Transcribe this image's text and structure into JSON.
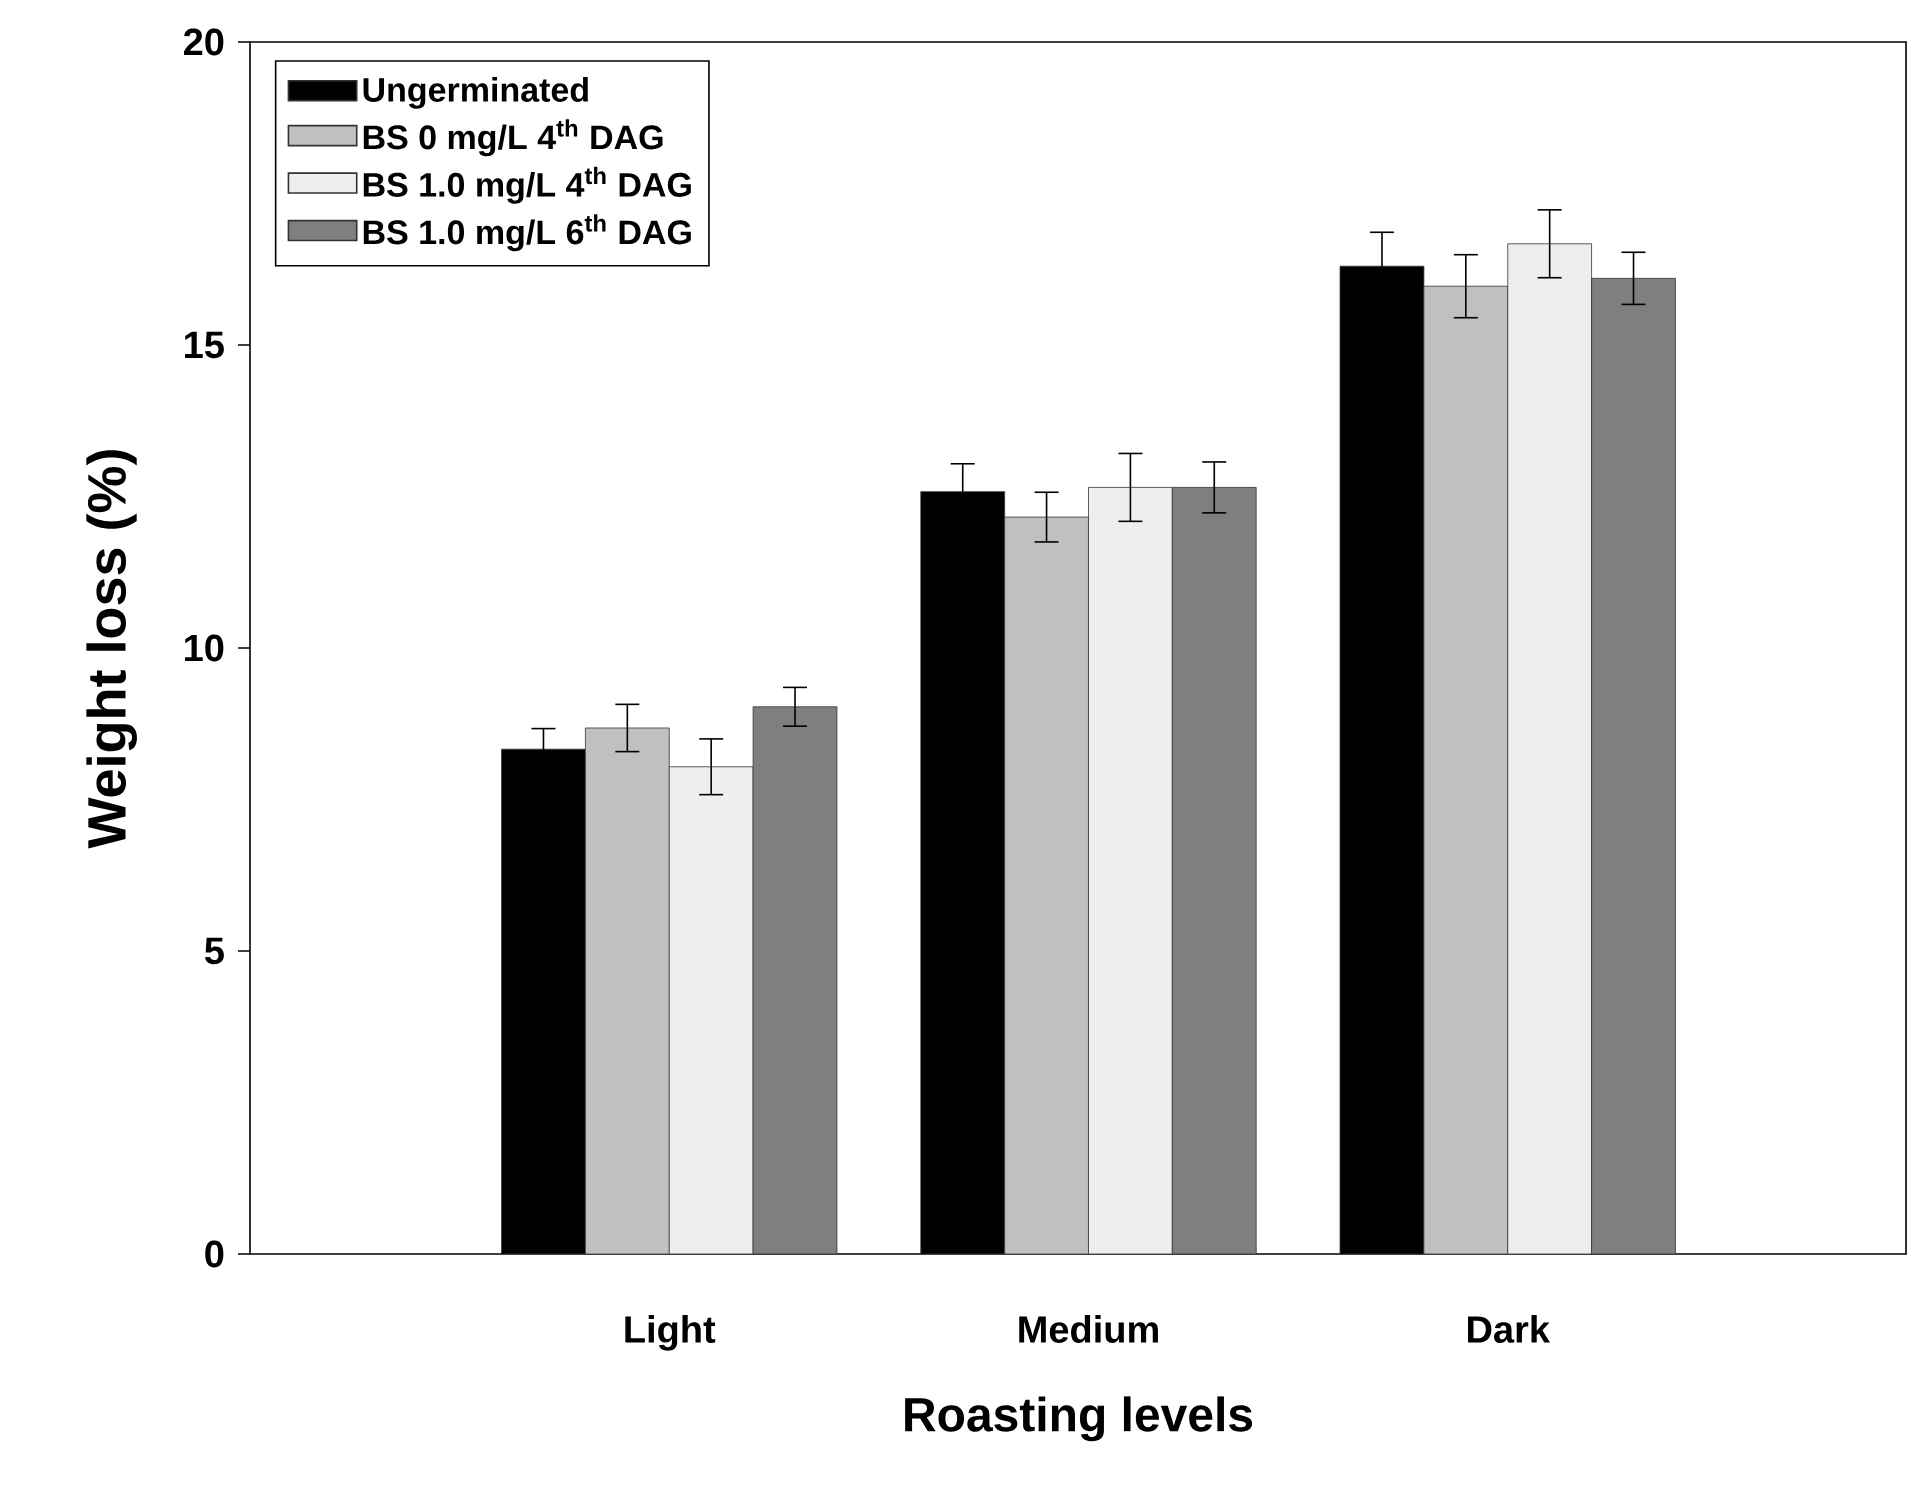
{
  "chart_data": {
    "type": "bar",
    "xlabel": "Roasting levels",
    "ylabel": "Weight loss (%)",
    "categories": [
      "Light",
      "Medium",
      "Dark"
    ],
    "series": [
      {
        "name": "Ungerminated",
        "color": "#000000",
        "values": [
          8.33,
          12.58,
          16.3
        ],
        "errors": [
          0.34,
          0.46,
          0.56
        ]
      },
      {
        "name": "BS    0 mg/L 4$^{th}$ DAG",
        "color": "#c0c0c0",
        "values": [
          8.68,
          12.16,
          15.97
        ],
        "errors": [
          0.39,
          0.41,
          0.52
        ]
      },
      {
        "name": "BS 1.0 mg/L 4$^{th}$ DAG",
        "color": "#eeeeee",
        "values": [
          8.04,
          12.65,
          16.67
        ],
        "errors": [
          0.46,
          0.56,
          0.56
        ]
      },
      {
        "name": "BS 1.0 mg/L 6$^{th}$ DAG",
        "color": "#7f7f7f",
        "values": [
          9.03,
          12.65,
          16.1
        ],
        "errors": [
          0.32,
          0.42,
          0.43
        ]
      }
    ],
    "ylim": [
      0,
      20
    ],
    "yticks": [
      0,
      5,
      10,
      15,
      20
    ],
    "legend": "top left",
    "grid": false
  }
}
